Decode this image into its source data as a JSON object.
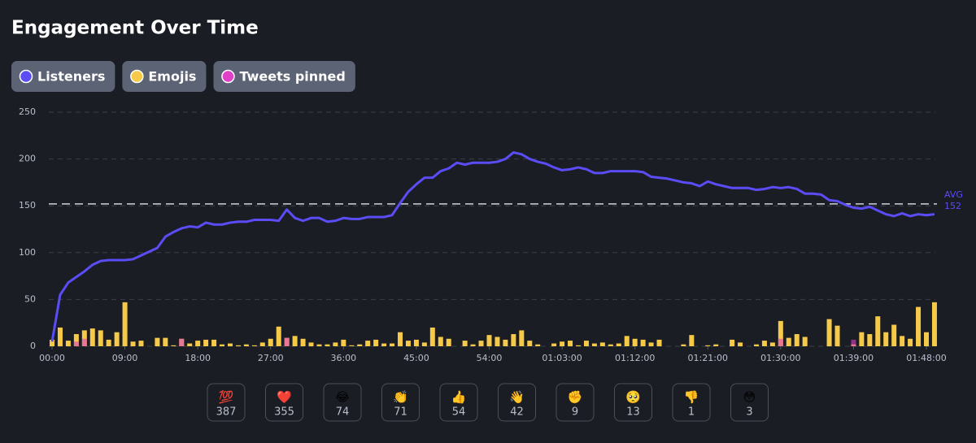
{
  "chart_data": {
    "type": "line-bar",
    "title": "Engagement Over Time",
    "x": [
      0,
      1,
      2,
      3,
      4,
      5,
      6,
      7,
      8,
      9,
      10,
      11,
      12,
      13,
      14,
      15,
      16,
      17,
      18,
      19,
      20,
      21,
      22,
      23,
      24,
      25,
      26,
      27,
      28,
      29,
      30,
      31,
      32,
      33,
      34,
      35,
      36,
      37,
      38,
      39,
      40,
      41,
      42,
      43,
      44,
      45,
      46,
      47,
      48,
      49,
      50,
      51,
      52,
      53,
      54,
      55,
      56,
      57,
      58,
      59,
      60,
      61,
      62,
      63,
      64,
      65,
      66,
      67,
      68,
      69,
      70,
      71,
      72,
      73,
      74,
      75,
      76,
      77,
      78,
      79,
      80,
      81,
      82,
      83,
      84,
      85,
      86,
      87,
      88,
      89,
      90,
      91,
      92,
      93,
      94,
      95,
      96,
      97,
      98,
      99,
      100,
      101,
      102,
      103,
      104,
      105,
      106,
      107,
      108,
      109
    ],
    "series": [
      {
        "name": "Listeners",
        "color": "#5b4cf5",
        "kind": "line",
        "values": [
          5,
          55,
          68,
          74,
          80,
          87,
          91,
          92,
          92,
          92,
          93,
          97,
          101,
          105,
          117,
          122,
          126,
          128,
          127,
          132,
          130,
          130,
          132,
          133,
          133,
          135,
          135,
          135,
          134,
          146,
          137,
          134,
          137,
          137,
          133,
          134,
          137,
          136,
          136,
          138,
          138,
          138,
          140,
          153,
          165,
          173,
          180,
          180,
          187,
          190,
          196,
          194,
          196,
          196,
          196,
          197,
          200,
          207,
          205,
          200,
          197,
          195,
          191,
          188,
          189,
          191,
          189,
          185,
          185,
          187,
          187,
          187,
          187,
          186,
          181,
          180,
          179,
          177,
          175,
          174,
          171,
          176,
          173,
          171,
          169,
          169,
          169,
          167,
          168,
          170,
          169,
          170,
          168,
          163,
          163,
          162,
          156,
          155,
          151,
          148,
          147,
          149,
          145,
          141,
          139,
          142,
          139,
          141,
          140,
          141
        ]
      },
      {
        "name": "Emojis",
        "color": "#f7c948",
        "kind": "bar",
        "values": [
          7,
          20,
          6,
          13,
          17,
          19,
          17,
          7,
          15,
          47,
          5,
          6,
          0,
          9,
          9,
          1,
          8,
          3,
          6,
          7,
          7,
          2,
          3,
          1,
          2,
          1,
          4,
          8,
          21,
          9,
          11,
          8,
          4,
          2,
          2,
          4,
          7,
          1,
          2,
          6,
          7,
          3,
          3,
          15,
          6,
          7,
          4,
          20,
          10,
          8,
          0,
          6,
          2,
          6,
          12,
          10,
          7,
          13,
          17,
          6,
          2,
          0,
          3,
          5,
          6,
          1,
          6,
          3,
          4,
          2,
          3,
          11,
          8,
          7,
          4,
          7,
          0,
          0,
          2,
          12,
          0,
          1,
          2,
          0,
          7,
          4,
          0,
          2,
          6,
          4,
          27,
          9,
          13,
          10,
          0,
          0,
          29,
          22,
          0,
          2,
          15,
          13,
          32,
          15,
          23,
          11,
          8,
          42,
          15,
          47
        ]
      },
      {
        "name": "Tweets pinned",
        "color": "#e040c8",
        "kind": "bar",
        "values": [
          null,
          null,
          null,
          5,
          8,
          null,
          null,
          null,
          null,
          null,
          null,
          null,
          null,
          null,
          null,
          null,
          8,
          null,
          null,
          null,
          null,
          null,
          null,
          null,
          null,
          null,
          null,
          null,
          null,
          9,
          null,
          null,
          null,
          null,
          null,
          null,
          null,
          null,
          null,
          null,
          null,
          null,
          null,
          null,
          null,
          null,
          null,
          null,
          null,
          null,
          null,
          null,
          null,
          null,
          null,
          null,
          null,
          null,
          null,
          null,
          null,
          null,
          null,
          null,
          null,
          null,
          null,
          null,
          null,
          null,
          null,
          null,
          null,
          null,
          null,
          null,
          null,
          null,
          null,
          null,
          null,
          null,
          null,
          null,
          null,
          null,
          null,
          null,
          null,
          null,
          8,
          null,
          null,
          null,
          null,
          null,
          null,
          null,
          null,
          7,
          null,
          null,
          null,
          null,
          null,
          null,
          null,
          null,
          null,
          null
        ]
      }
    ],
    "xlim": [
      0,
      108
    ],
    "xticks": [
      {
        "value": 0,
        "label": "00:00"
      },
      {
        "value": 9,
        "label": "09:00"
      },
      {
        "value": 18,
        "label": "18:00"
      },
      {
        "value": 27,
        "label": "27:00"
      },
      {
        "value": 36,
        "label": "36:00"
      },
      {
        "value": 45,
        "label": "45:00"
      },
      {
        "value": 54,
        "label": "54:00"
      },
      {
        "value": 63,
        "label": "01:03:00"
      },
      {
        "value": 72,
        "label": "01:12:00"
      },
      {
        "value": 81,
        "label": "01:21:00"
      },
      {
        "value": 90,
        "label": "01:30:00"
      },
      {
        "value": 99,
        "label": "01:39:00"
      },
      {
        "value": 108,
        "label": "01:48:00"
      }
    ],
    "ylim": [
      0,
      250
    ],
    "yticks": [
      0,
      50,
      100,
      150,
      200,
      250
    ],
    "grid": true,
    "average": {
      "label": "AVG",
      "value": 152
    },
    "reactions": [
      {
        "emoji": "💯",
        "count": 387
      },
      {
        "emoji": "❤️",
        "count": 355
      },
      {
        "emoji": "😂",
        "count": 74
      },
      {
        "emoji": "👏",
        "count": 71
      },
      {
        "emoji": "👍",
        "count": 54
      },
      {
        "emoji": "👋",
        "count": 42
      },
      {
        "emoji": "✊",
        "count": 9
      },
      {
        "emoji": "🥺",
        "count": 13
      },
      {
        "emoji": "👎",
        "count": 1
      },
      {
        "emoji": "😳",
        "count": 3
      }
    ]
  }
}
